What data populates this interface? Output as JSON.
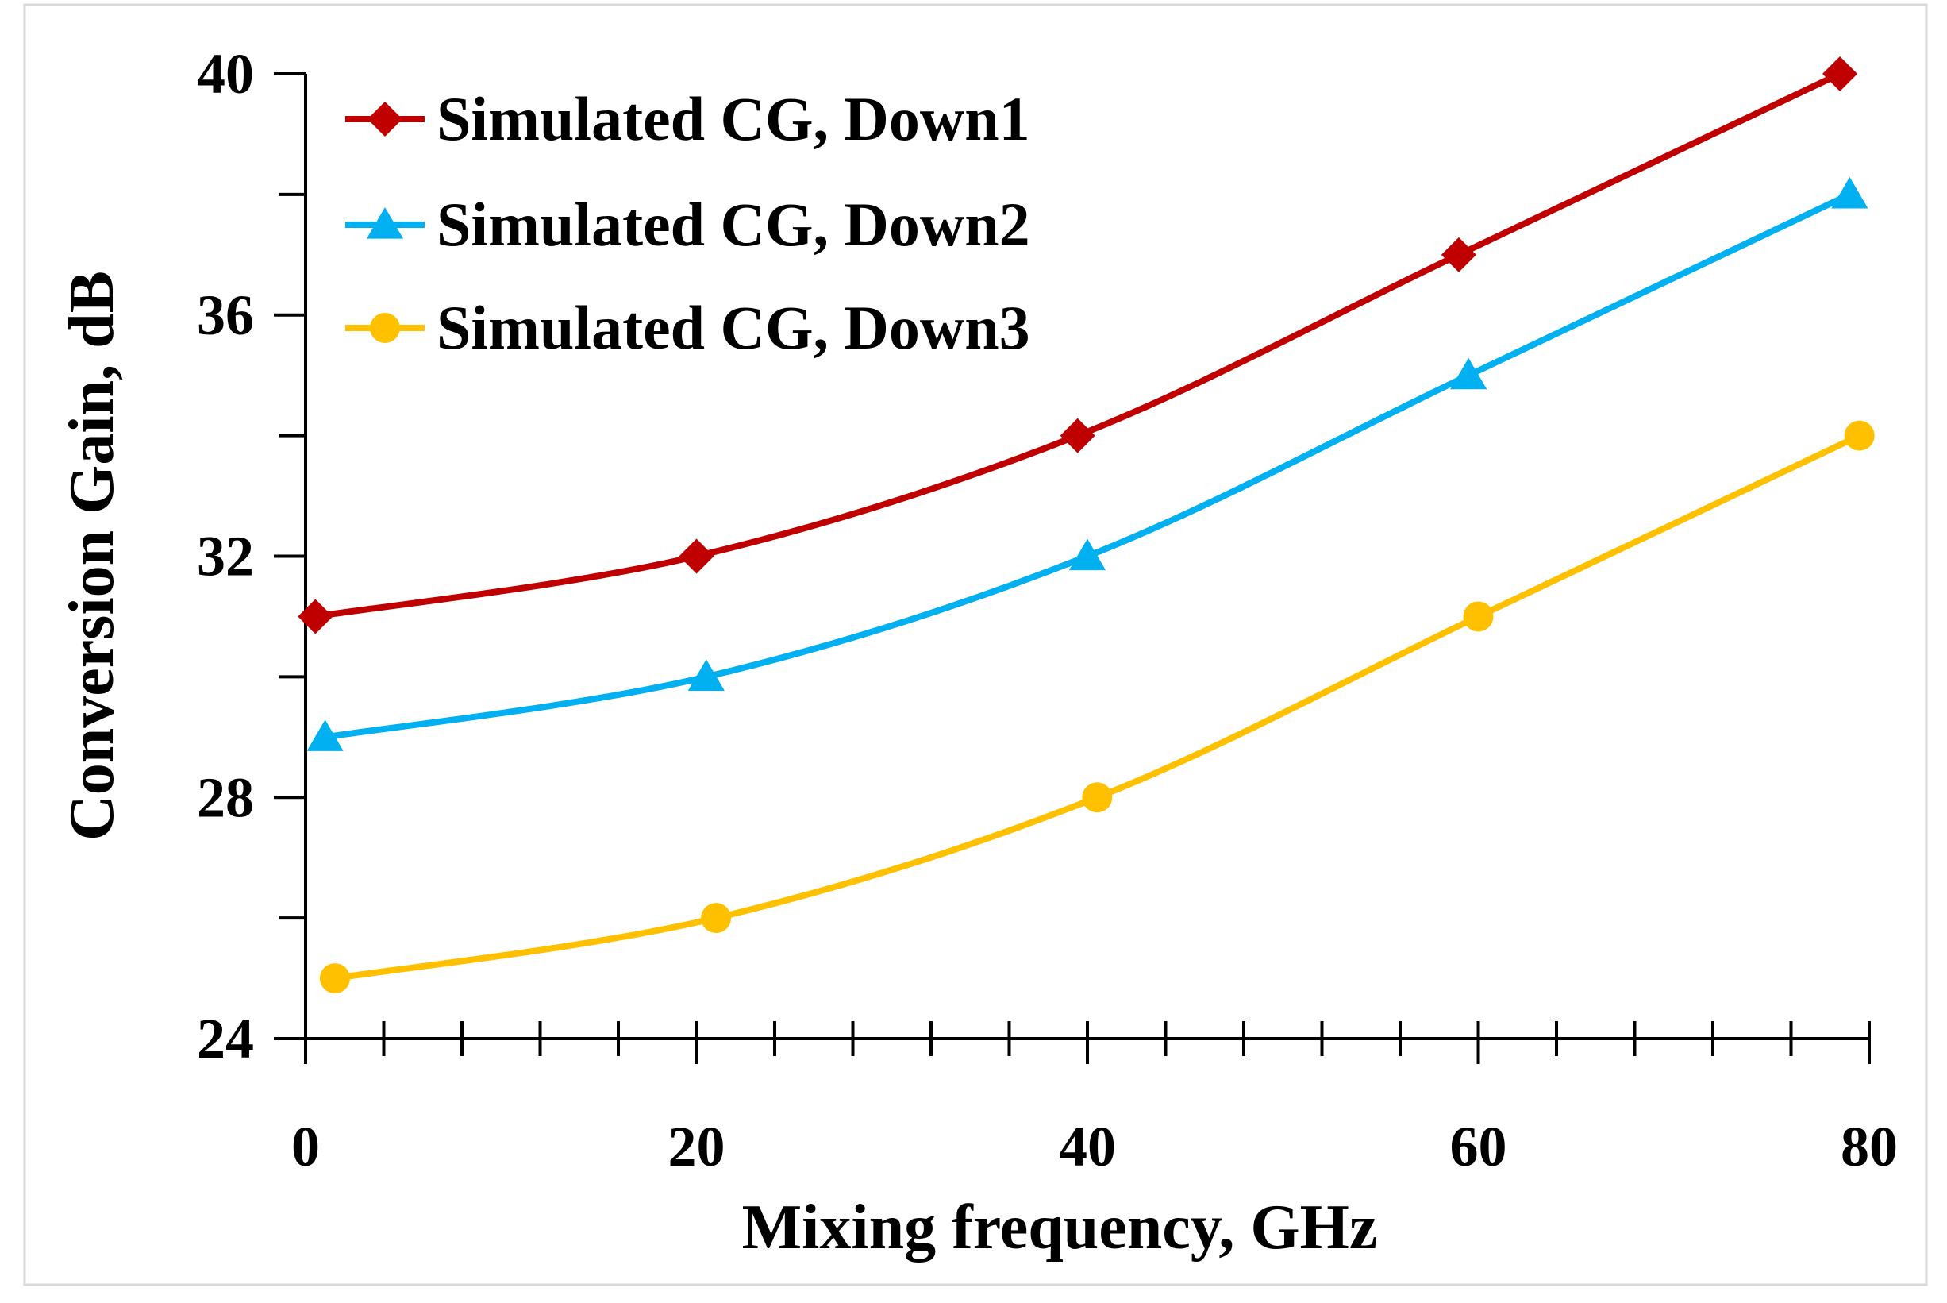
{
  "chart_data": {
    "type": "line",
    "title": "",
    "xlabel": "Mixing frequency, GHz",
    "ylabel": "Conversion Gain, dB",
    "xlim": [
      0,
      80
    ],
    "ylim": [
      24,
      40
    ],
    "xticks": [
      0,
      20,
      40,
      60,
      80
    ],
    "yticks": [
      24,
      28,
      32,
      36,
      40
    ],
    "x_minor_step": 4,
    "y_minor_step": 2,
    "grid": false,
    "legend_position": "top-left",
    "series": [
      {
        "name": "Simulated CG, Down1",
        "color": "#c00000",
        "marker": "diamond",
        "x": [
          0.5,
          20,
          39.5,
          59,
          78.5
        ],
        "y": [
          31,
          32,
          34,
          37,
          40
        ]
      },
      {
        "name": "Simulated CG, Down2",
        "color": "#00b0f0",
        "marker": "triangle",
        "x": [
          1,
          20.5,
          40,
          59.5,
          79
        ],
        "y": [
          29,
          30,
          32,
          35,
          38
        ]
      },
      {
        "name": "Simulated CG, Down3",
        "color": "#ffc000",
        "marker": "circle",
        "x": [
          1.5,
          21,
          40.5,
          60,
          79.5
        ],
        "y": [
          25,
          26,
          28,
          31,
          34
        ]
      }
    ]
  }
}
